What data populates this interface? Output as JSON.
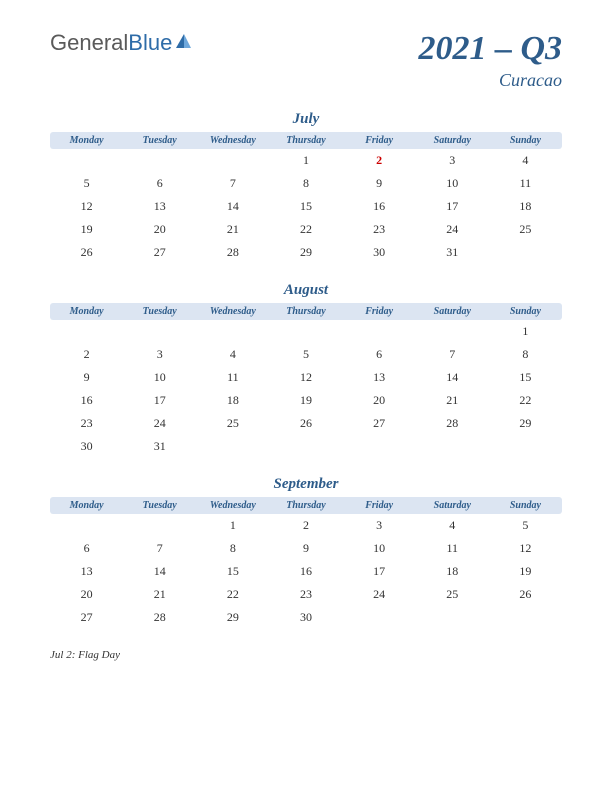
{
  "logo": {
    "part1": "General",
    "part2": "Blue"
  },
  "title": "2021 – Q3",
  "country": "Curacao",
  "weekdays": [
    "Monday",
    "Tuesday",
    "Wednesday",
    "Thursday",
    "Friday",
    "Saturday",
    "Sunday"
  ],
  "holidays": [
    {
      "month": 0,
      "day": 2
    }
  ],
  "months": [
    {
      "name": "July",
      "weeks": [
        [
          "",
          "",
          "",
          "1",
          "2",
          "3",
          "4"
        ],
        [
          "5",
          "6",
          "7",
          "8",
          "9",
          "10",
          "11"
        ],
        [
          "12",
          "13",
          "14",
          "15",
          "16",
          "17",
          "18"
        ],
        [
          "19",
          "20",
          "21",
          "22",
          "23",
          "24",
          "25"
        ],
        [
          "26",
          "27",
          "28",
          "29",
          "30",
          "31",
          ""
        ]
      ]
    },
    {
      "name": "August",
      "weeks": [
        [
          "",
          "",
          "",
          "",
          "",
          "",
          "1"
        ],
        [
          "2",
          "3",
          "4",
          "5",
          "6",
          "7",
          "8"
        ],
        [
          "9",
          "10",
          "11",
          "12",
          "13",
          "14",
          "15"
        ],
        [
          "16",
          "17",
          "18",
          "19",
          "20",
          "21",
          "22"
        ],
        [
          "23",
          "24",
          "25",
          "26",
          "27",
          "28",
          "29"
        ],
        [
          "30",
          "31",
          "",
          "",
          "",
          "",
          ""
        ]
      ]
    },
    {
      "name": "September",
      "weeks": [
        [
          "",
          "",
          "1",
          "2",
          "3",
          "4",
          "5"
        ],
        [
          "6",
          "7",
          "8",
          "9",
          "10",
          "11",
          "12"
        ],
        [
          "13",
          "14",
          "15",
          "16",
          "17",
          "18",
          "19"
        ],
        [
          "20",
          "21",
          "22",
          "23",
          "24",
          "25",
          "26"
        ],
        [
          "27",
          "28",
          "29",
          "30",
          "",
          "",
          ""
        ]
      ]
    }
  ],
  "note": "Jul 2: Flag Day",
  "colors": {
    "header_bg": "#dce5f2",
    "accent": "#2e5c8a",
    "holiday": "#cc0000",
    "text": "#333333",
    "logo_gray": "#5a5a5a",
    "logo_blue": "#2e6ca8"
  }
}
